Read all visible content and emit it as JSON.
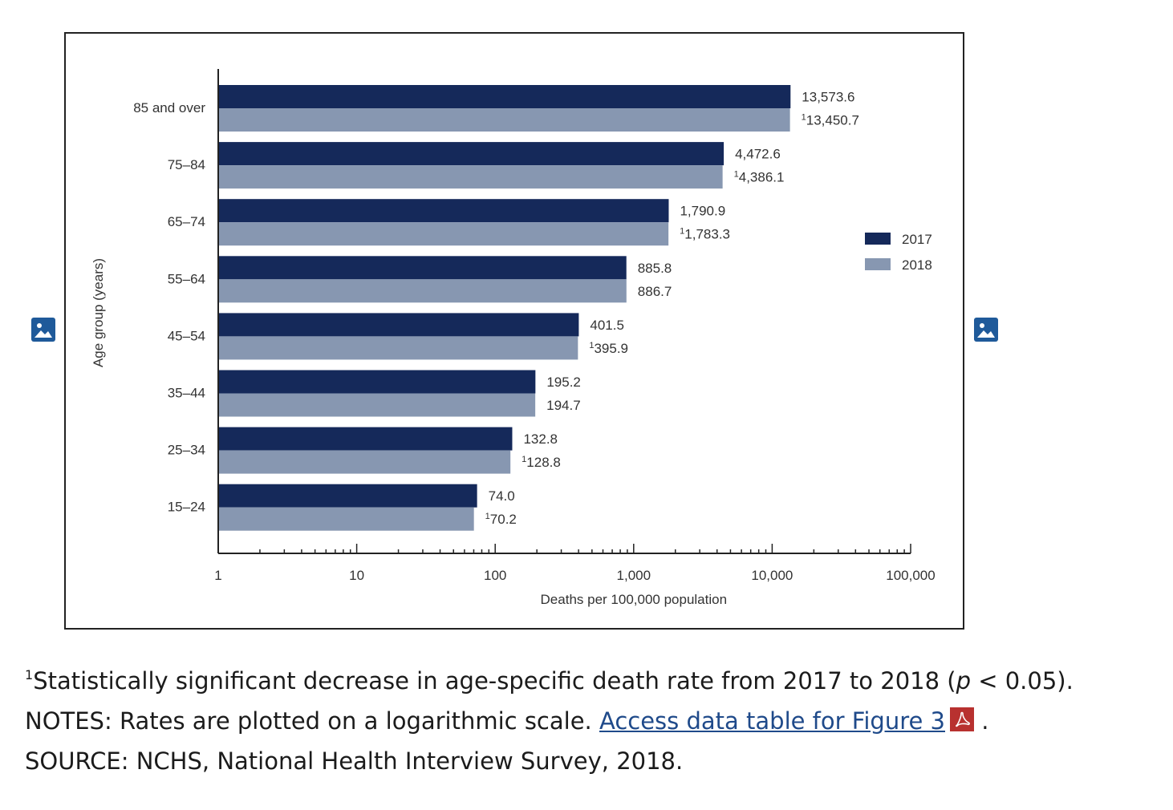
{
  "chart_data": {
    "type": "bar",
    "orientation": "horizontal",
    "ylabel": "Age group (years)",
    "xlabel": "Deaths per 100,000 population",
    "xscale": "log",
    "xlim": [
      1,
      100000
    ],
    "x_ticks": [
      "1",
      "10",
      "100",
      "1,000",
      "10,000",
      "100,000"
    ],
    "categories": [
      "85 and over",
      "75–84",
      "65–74",
      "55–64",
      "45–54",
      "35–44",
      "25–34",
      "15–24"
    ],
    "series": [
      {
        "name": "2017",
        "color": "#15295a",
        "values": [
          13573.6,
          4472.6,
          1790.9,
          885.8,
          401.5,
          195.2,
          132.8,
          74.0
        ],
        "labels": [
          "13,573.6",
          "4,472.6",
          "1,790.9",
          "885.8",
          "401.5",
          "195.2",
          "132.8",
          "74.0"
        ],
        "footnote": [
          "",
          "",
          "",
          "",
          "",
          "",
          "",
          ""
        ]
      },
      {
        "name": "2018",
        "color": "#8797b1",
        "values": [
          13450.7,
          4386.1,
          1783.3,
          886.7,
          395.9,
          194.7,
          128.8,
          70.2
        ],
        "labels": [
          "13,450.7",
          "4,386.1",
          "1,783.3",
          "886.7",
          "395.9",
          "194.7",
          "128.8",
          "70.2"
        ],
        "footnote": [
          "1",
          "1",
          "1",
          "",
          "1",
          "",
          "1",
          "1"
        ]
      }
    ],
    "legend": "right",
    "grid": false
  },
  "notes": {
    "footnote_mark": "1",
    "footnote_text": "Statistically significant decrease in age-specific death rate from 2017 to 2018 (",
    "footnote_p": "p",
    "footnote_end": " < 0.05).",
    "notes_text": "NOTES: Rates are plotted on a logarithmic scale. ",
    "link_text": "Access data table for Figure 3",
    "notes_end": " .",
    "source_text": "SOURCE: NCHS, National Health Interview Survey, 2018."
  },
  "icons": {
    "left": "image-icon",
    "right": "image-icon",
    "pdf": "pdf-icon"
  }
}
